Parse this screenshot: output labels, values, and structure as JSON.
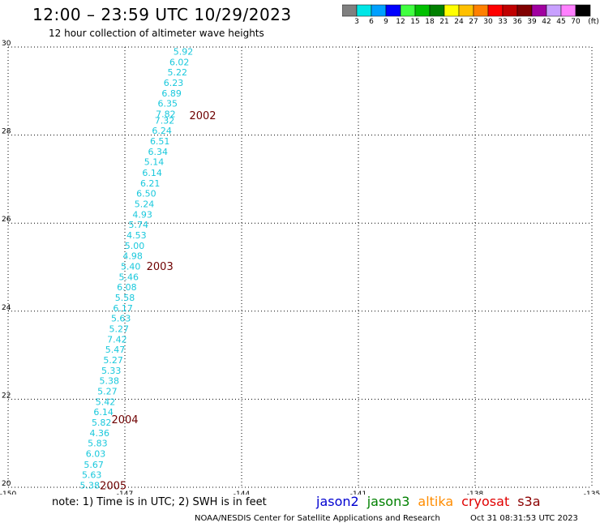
{
  "header": {
    "title": "12:00 – 23:59 UTC 10/29/2023",
    "subtitle": "12 hour collection of altimeter wave heights"
  },
  "colorbar": {
    "unit": "(ft)",
    "labels": [
      "3",
      "6",
      "9",
      "12",
      "15",
      "18",
      "21",
      "24",
      "27",
      "30",
      "33",
      "36",
      "39",
      "42",
      "45",
      "70"
    ],
    "colors": [
      "#808080",
      "#00e6e6",
      "#00a0ff",
      "#0000ff",
      "#40ff40",
      "#00c000",
      "#008000",
      "#ffff00",
      "#ffc000",
      "#ff8000",
      "#ff0000",
      "#c00000",
      "#800000",
      "#a000a0",
      "#c8a0ff",
      "#ff80ff",
      "#000000"
    ]
  },
  "chart_data": {
    "type": "scatter",
    "xlim": [
      -150,
      -135
    ],
    "ylim": [
      20,
      30
    ],
    "x_ticks": [
      "-150",
      "-147",
      "-144",
      "-141",
      "-138",
      "-135"
    ],
    "x_tick_values": [
      -150,
      -147,
      -144,
      -141,
      -138,
      -135
    ],
    "y_ticks": [
      "20",
      "22",
      "24",
      "26",
      "28",
      "30"
    ],
    "y_tick_values": [
      20,
      22,
      24,
      26,
      28,
      30
    ],
    "grid": true,
    "value_color": "#19c8dc",
    "time_color": "#6e0000",
    "points": [
      {
        "lon": -145.5,
        "lat": 29.9,
        "value": "5.92"
      },
      {
        "lon": -145.6,
        "lat": 29.66,
        "value": "6.02"
      },
      {
        "lon": -145.65,
        "lat": 29.43,
        "value": "5.22"
      },
      {
        "lon": -145.75,
        "lat": 29.19,
        "value": "6.23"
      },
      {
        "lon": -145.8,
        "lat": 28.95,
        "value": "6.89"
      },
      {
        "lon": -145.9,
        "lat": 28.72,
        "value": "6.35"
      },
      {
        "lon": -145.95,
        "lat": 28.48,
        "value": "7.82"
      },
      {
        "lon": -145.98,
        "lat": 28.33,
        "value": "7.32"
      },
      {
        "lon": -146.05,
        "lat": 28.1,
        "value": "6.24"
      },
      {
        "lon": -146.1,
        "lat": 27.86,
        "value": "6.51"
      },
      {
        "lon": -146.15,
        "lat": 27.62,
        "value": "6.34"
      },
      {
        "lon": -146.25,
        "lat": 27.39,
        "value": "5.14"
      },
      {
        "lon": -146.3,
        "lat": 27.15,
        "value": "6.14"
      },
      {
        "lon": -146.35,
        "lat": 26.91,
        "value": "6.21"
      },
      {
        "lon": -146.45,
        "lat": 26.68,
        "value": "6.50"
      },
      {
        "lon": -146.5,
        "lat": 26.44,
        "value": "5.24"
      },
      {
        "lon": -146.55,
        "lat": 26.2,
        "value": "4.93"
      },
      {
        "lon": -146.65,
        "lat": 25.97,
        "value": "5.74"
      },
      {
        "lon": -146.7,
        "lat": 25.73,
        "value": "4.53"
      },
      {
        "lon": -146.75,
        "lat": 25.49,
        "value": "5.00"
      },
      {
        "lon": -146.8,
        "lat": 25.26,
        "value": "4.98"
      },
      {
        "lon": -146.85,
        "lat": 25.02,
        "value": "5.40"
      },
      {
        "lon": -146.9,
        "lat": 24.78,
        "value": "5.46"
      },
      {
        "lon": -146.95,
        "lat": 24.55,
        "value": "6.08"
      },
      {
        "lon": -147.0,
        "lat": 24.31,
        "value": "5.58"
      },
      {
        "lon": -147.05,
        "lat": 24.07,
        "value": "6.17"
      },
      {
        "lon": -147.1,
        "lat": 23.84,
        "value": "5.63"
      },
      {
        "lon": -147.15,
        "lat": 23.6,
        "value": "5.27"
      },
      {
        "lon": -147.2,
        "lat": 23.36,
        "value": "7.42"
      },
      {
        "lon": -147.25,
        "lat": 23.13,
        "value": "5.47"
      },
      {
        "lon": -147.3,
        "lat": 22.89,
        "value": "5.27"
      },
      {
        "lon": -147.35,
        "lat": 22.65,
        "value": "5.33"
      },
      {
        "lon": -147.4,
        "lat": 22.42,
        "value": "5.38"
      },
      {
        "lon": -147.45,
        "lat": 22.18,
        "value": "5.27"
      },
      {
        "lon": -147.5,
        "lat": 21.94,
        "value": "5.42"
      },
      {
        "lon": -147.55,
        "lat": 21.71,
        "value": "6.14"
      },
      {
        "lon": -147.6,
        "lat": 21.47,
        "value": "5.82"
      },
      {
        "lon": -147.65,
        "lat": 21.23,
        "value": "4.36"
      },
      {
        "lon": -147.7,
        "lat": 21.0,
        "value": "5.83"
      },
      {
        "lon": -147.75,
        "lat": 20.76,
        "value": "6.03"
      },
      {
        "lon": -147.8,
        "lat": 20.52,
        "value": "5.67"
      },
      {
        "lon": -147.85,
        "lat": 20.29,
        "value": "5.63"
      },
      {
        "lon": -147.9,
        "lat": 20.05,
        "value": "5.38"
      }
    ],
    "time_labels": [
      {
        "lon": -145.0,
        "lat": 28.45,
        "text": "2002"
      },
      {
        "lon": -146.1,
        "lat": 25.03,
        "text": "2003"
      },
      {
        "lon": -147.0,
        "lat": 21.55,
        "text": "2004"
      },
      {
        "lon": -147.3,
        "lat": 20.05,
        "text": "2005"
      }
    ]
  },
  "footer": {
    "note": "note: 1) Time is in UTC; 2) SWH is in feet",
    "legend": [
      {
        "label": "jason2",
        "color": "#0000d0"
      },
      {
        "label": "jason3",
        "color": "#008000"
      },
      {
        "label": "altika",
        "color": "#ff8c00"
      },
      {
        "label": "cryosat",
        "color": "#e00000"
      },
      {
        "label": "s3a",
        "color": "#8b0000"
      }
    ],
    "credit": "NOAA/NESDIS Center for Satellite Applications and Research",
    "timestamp": "Oct 31 08:31:53 UTC 2023"
  }
}
